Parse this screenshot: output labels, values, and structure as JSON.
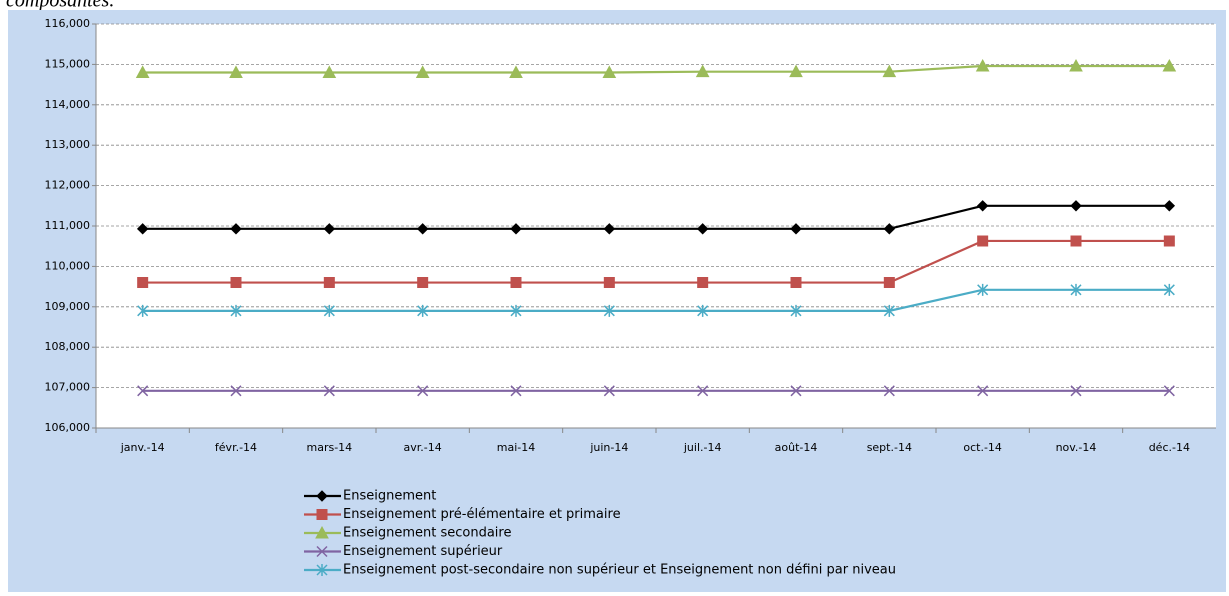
{
  "caption": "composantes.",
  "chart_data": {
    "type": "line",
    "categories": [
      "janv.-14",
      "févr.-14",
      "mars-14",
      "avr.-14",
      "mai-14",
      "juin-14",
      "juil.-14",
      "août-14",
      "sept.-14",
      "oct.-14",
      "nov.-14",
      "déc.-14"
    ],
    "series": [
      {
        "name": "Enseignement",
        "color": "#000000",
        "marker": "diamond",
        "values": [
          110930,
          110930,
          110930,
          110930,
          110930,
          110930,
          110930,
          110930,
          110930,
          111500,
          111500,
          111500
        ]
      },
      {
        "name": "Enseignement pré-élémentaire et primaire",
        "color": "#c0504d",
        "marker": "square",
        "values": [
          109600,
          109600,
          109600,
          109600,
          109600,
          109600,
          109600,
          109600,
          109600,
          110630,
          110630,
          110630
        ]
      },
      {
        "name": "Enseignement secondaire",
        "color": "#9bbb59",
        "marker": "triangle",
        "values": [
          114800,
          114800,
          114800,
          114800,
          114800,
          114800,
          114820,
          114820,
          114820,
          114960,
          114960,
          114960
        ]
      },
      {
        "name": "Enseignement supérieur",
        "color": "#8064a2",
        "marker": "x",
        "values": [
          106920,
          106920,
          106920,
          106920,
          106920,
          106920,
          106920,
          106920,
          106920,
          106920,
          106920,
          106920
        ]
      },
      {
        "name": "Enseignement post-secondaire non supérieur et Enseignement non défini par niveau",
        "color": "#4bacc6",
        "marker": "star",
        "values": [
          108900,
          108900,
          108900,
          108900,
          108900,
          108900,
          108900,
          108900,
          108900,
          109420,
          109420,
          109420
        ]
      }
    ],
    "ylim": [
      106000,
      116000
    ],
    "yticks": [
      {
        "value": 106000,
        "label": "106,000"
      },
      {
        "value": 107000,
        "label": "107,000"
      },
      {
        "value": 108000,
        "label": "108,000"
      },
      {
        "value": 109000,
        "label": "109,000"
      },
      {
        "value": 110000,
        "label": "110,000"
      },
      {
        "value": 111000,
        "label": "111,000"
      },
      {
        "value": 112000,
        "label": "112,000"
      },
      {
        "value": 113000,
        "label": "113,000"
      },
      {
        "value": 114000,
        "label": "114,000"
      },
      {
        "value": 115000,
        "label": "115,000"
      },
      {
        "value": 116000,
        "label": "116,000"
      }
    ],
    "grid": true,
    "legend": "bottom"
  }
}
